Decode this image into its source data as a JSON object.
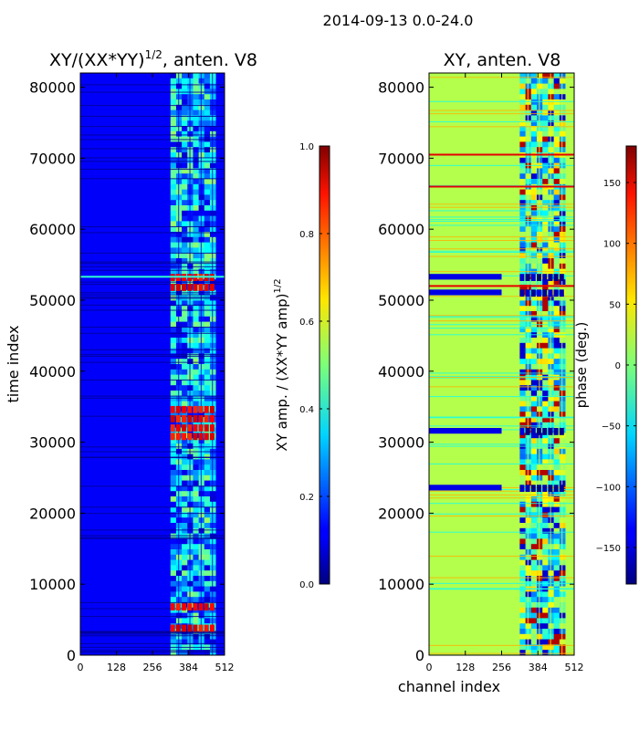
{
  "figure_title": "2014-09-13 0.0-24.0",
  "colors": {
    "frame": "#000000",
    "background": "#ffffff"
  },
  "chart_data": [
    {
      "type": "heatmap",
      "title_main": "XY/(XX*YY)",
      "title_exp": "1/2",
      "title_suffix": ", anten. V8",
      "xlabel": "",
      "ylabel": "time index",
      "xlim": [
        0,
        512
      ],
      "ylim": [
        0,
        82000
      ],
      "x_ticks": [
        0,
        128,
        256,
        384,
        512
      ],
      "x_tick_labels": [
        "0",
        "128",
        "256",
        "384",
        "512"
      ],
      "y_ticks": [
        0,
        10000,
        20000,
        30000,
        40000,
        50000,
        60000,
        70000,
        80000
      ],
      "y_tick_labels": [
        "0",
        "10000",
        "20000",
        "30000",
        "40000",
        "50000",
        "60000",
        "70000",
        "80000"
      ],
      "colormap": "jet",
      "colorbar": {
        "label_main": "XY amp. / (XX*YY amp)",
        "label_exp": "1/2",
        "range": [
          0.0,
          1.0
        ],
        "ticks": [
          0.0,
          0.2,
          0.4,
          0.6,
          0.8,
          1.0
        ],
        "tick_labels": [
          "0.0",
          "0.2",
          "0.4",
          "0.6",
          "0.8",
          "1.0"
        ]
      },
      "background_value": 0.12,
      "active_channel_range": [
        320,
        480
      ],
      "active_band_value": 0.3,
      "high_rows": [
        3800,
        6800,
        30800,
        32000,
        33300,
        34600,
        51800,
        53200
      ],
      "high_row_value": 0.88,
      "bright_line_rows": [
        53300
      ],
      "bright_line_value": 0.42
    },
    {
      "type": "heatmap",
      "title_main": "XY, anten. V8",
      "title_exp": "",
      "title_suffix": "",
      "xlabel": "channel index",
      "ylabel": "",
      "xlim": [
        0,
        512
      ],
      "ylim": [
        0,
        82000
      ],
      "x_ticks": [
        0,
        128,
        256,
        384,
        512
      ],
      "x_tick_labels": [
        "0",
        "128",
        "256",
        "384",
        "512"
      ],
      "y_ticks": [
        0,
        10000,
        20000,
        30000,
        40000,
        50000,
        60000,
        70000,
        80000
      ],
      "y_tick_labels": [
        "0",
        "10000",
        "20000",
        "30000",
        "40000",
        "50000",
        "60000",
        "70000",
        "80000"
      ],
      "colormap": "jet",
      "colorbar": {
        "label_main": "phase (deg.)",
        "label_exp": "",
        "range": [
          -180,
          180
        ],
        "ticks": [
          -150,
          -100,
          -50,
          0,
          50,
          100,
          150
        ],
        "tick_labels": [
          "−150",
          "−100",
          "−50",
          "0",
          "50",
          "100",
          "150"
        ]
      },
      "background_value": 0.55,
      "active_channel_range": [
        320,
        480
      ],
      "active_band_value": 0.45,
      "high_rows": [
        23500,
        31500,
        51000,
        53200
      ],
      "high_row_value": 0.05,
      "bright_line_rows": [
        52000,
        66000,
        70500
      ],
      "bright_line_value": 0.9
    }
  ]
}
